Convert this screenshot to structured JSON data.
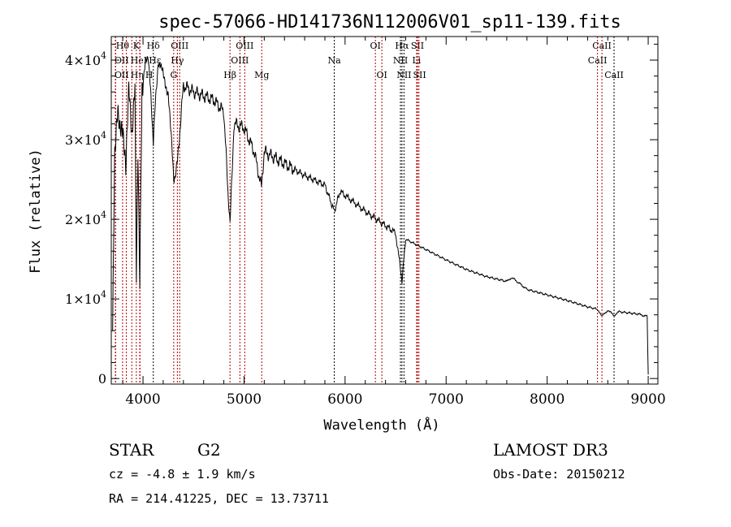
{
  "chart_data": {
    "type": "line",
    "title": "spec-57066-HD141736N112006V01_sp11-139.fits",
    "xlabel": "Wavelength (Å)",
    "ylabel": "Flux (relative)",
    "xlim": [
      3686,
      9096
    ],
    "ylim": [
      -700,
      42960
    ],
    "xticks": [
      4000,
      5000,
      6000,
      7000,
      8000,
      9000
    ],
    "xtick_labels": [
      "4000",
      "5000",
      "6000",
      "7000",
      "8000",
      "9000"
    ],
    "yticks": [
      0,
      10000,
      20000,
      30000,
      40000
    ],
    "ytick_labels": [
      {
        "mant": "0",
        "exp": ""
      },
      {
        "mant": "1×10",
        "exp": "4"
      },
      {
        "mant": "2×10",
        "exp": "4"
      },
      {
        "mant": "3×10",
        "exp": "4"
      },
      {
        "mant": "4×10",
        "exp": "4"
      }
    ],
    "grid": false,
    "series": [
      {
        "name": "spectrum",
        "x": [
          3700,
          3720,
          3750,
          3800,
          3830,
          3860,
          3890,
          3920,
          3934,
          3950,
          3968,
          3990,
          4050,
          4102,
          4150,
          4200,
          4250,
          4304,
          4340,
          4400,
          4500,
          4600,
          4700,
          4800,
          4861,
          4900,
          5000,
          5100,
          5172,
          5200,
          5400,
          5600,
          5800,
          5893,
          5950,
          6200,
          6400,
          6500,
          6563,
          6600,
          6800,
          7000,
          7200,
          7400,
          7600,
          7650,
          7800,
          8000,
          8200,
          8400,
          8500,
          8542,
          8600,
          8662,
          8700,
          8900,
          8990,
          9000
        ],
        "y": [
          5000,
          28000,
          35000,
          30000,
          25000,
          36000,
          30000,
          38000,
          12000,
          30000,
          13000,
          37000,
          41000,
          30000,
          40000,
          38000,
          36000,
          25000,
          27000,
          36800,
          36000,
          35500,
          35000,
          33500,
          19000,
          32000,
          31500,
          28500,
          24000,
          28500,
          27000,
          25500,
          24300,
          21000,
          23500,
          21000,
          19200,
          18300,
          12300,
          17500,
          16200,
          14900,
          13700,
          12800,
          12200,
          12700,
          11200,
          10500,
          9800,
          9000,
          8700,
          7800,
          8600,
          7900,
          8400,
          8100,
          7800,
          500
        ]
      }
    ],
    "lines": [
      {
        "label": "Hθ",
        "wl": 3798,
        "row": 1,
        "color": "#b00000"
      },
      {
        "label": "K",
        "wl": 3934,
        "row": 1,
        "color": "#b00000"
      },
      {
        "label": "Hδ",
        "wl": 4102,
        "row": 1,
        "color": "#000000"
      },
      {
        "label": "OIII",
        "wl": 4363,
        "row": 1,
        "color": "#b00000"
      },
      {
        "label": "OIII",
        "wl": 5007,
        "row": 1,
        "color": "#b00000"
      },
      {
        "label": "OI",
        "wl": 6300,
        "row": 1,
        "color": "#b00000"
      },
      {
        "label": "Hα",
        "wl": 6563,
        "row": 1,
        "color": "#000000"
      },
      {
        "label": "SII",
        "wl": 6717,
        "row": 1,
        "color": "#b00000"
      },
      {
        "label": "CaII",
        "wl": 8542,
        "row": 1,
        "color": "#b00000"
      },
      {
        "label": "OII",
        "wl": 3727,
        "row": 2,
        "color": "#b00000"
      },
      {
        "label": "HeI",
        "wl": 3889,
        "row": 2,
        "color": "#b00000"
      },
      {
        "label": "Hε",
        "wl": 3970,
        "row": 2,
        "color": "#b00000"
      },
      {
        "label": "Hγ",
        "wl": 4340,
        "row": 2,
        "color": "#b00000"
      },
      {
        "label": "OIII",
        "wl": 4959,
        "row": 2,
        "color": "#b00000"
      },
      {
        "label": "Na",
        "wl": 5893,
        "row": 2,
        "color": "#000000"
      },
      {
        "label": "NII",
        "wl": 6548,
        "row": 2,
        "color": "#000000"
      },
      {
        "label": "Li",
        "wl": 6708,
        "row": 2,
        "color": "#b00000"
      },
      {
        "label": "CaII",
        "wl": 8498,
        "row": 2,
        "color": "#b00000"
      },
      {
        "label": "OII",
        "wl": 3729,
        "row": 3,
        "color": "#b00000"
      },
      {
        "label": "Hη",
        "wl": 3835,
        "row": 3,
        "color": "#b00000"
      },
      {
        "label": "H",
        "wl": 3968,
        "row": 3,
        "color": "#b00000"
      },
      {
        "label": "G",
        "wl": 4304,
        "row": 3,
        "color": "#b00000"
      },
      {
        "label": "Hβ",
        "wl": 4861,
        "row": 3,
        "color": "#b00000"
      },
      {
        "label": "Mg",
        "wl": 5175,
        "row": 3,
        "color": "#b00000"
      },
      {
        "label": "OI",
        "wl": 6364,
        "row": 3,
        "color": "#b00000"
      },
      {
        "label": "NII",
        "wl": 6583,
        "row": 3,
        "color": "#000000"
      },
      {
        "label": "SII",
        "wl": 6731,
        "row": 3,
        "color": "#b00000"
      },
      {
        "label": "CaII",
        "wl": 8662,
        "row": 3,
        "color": "#000000"
      }
    ]
  },
  "info": {
    "class": "STAR",
    "subclass": "G2",
    "survey": "LAMOST DR3",
    "cz": "cz = -4.8 ± 1.9 km/s",
    "obs_date": "Obs-Date: 20150212",
    "radec": "RA = 214.41225, DEC =  13.73711"
  }
}
